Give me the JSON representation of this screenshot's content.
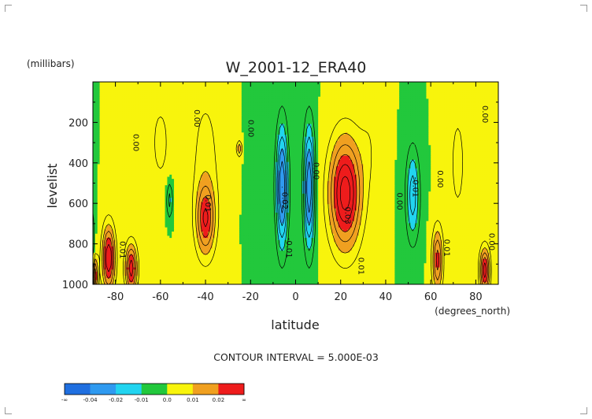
{
  "chart_data": {
    "type": "heatmap",
    "title": "W_2001-12_ERA40",
    "xlabel": "latitude",
    "ylabel": "levelist",
    "x_units": "(degrees_north)",
    "y_units": "(millibars)",
    "xlim": [
      -90,
      90
    ],
    "ylim": [
      1000,
      0
    ],
    "x_ticks": [
      -80,
      -60,
      -40,
      -20,
      0,
      20,
      40,
      60,
      80
    ],
    "y_ticks": [
      200,
      400,
      600,
      800,
      1000
    ],
    "contour_interval_label": "CONTOUR INTERVAL = 5.000E-03",
    "colorbar": {
      "labels": [
        "-∞",
        "-0.04",
        "-0.02",
        "-0.01",
        "0.0",
        "0.01",
        "0.02",
        "∞"
      ],
      "colors": [
        "#1f6fe0",
        "#2f9af0",
        "#22d4f0",
        "#22c83c",
        "#f8f40c",
        "#f0a020",
        "#ee1c1c"
      ]
    },
    "contour_labels": [
      {
        "text": "0.00",
        "x": -45,
        "y": 180
      },
      {
        "text": "0.00",
        "x": -72,
        "y": 300
      },
      {
        "text": "0.00",
        "x": -21,
        "y": 230
      },
      {
        "text": "0.01",
        "x": -40,
        "y": 600
      },
      {
        "text": "0.01",
        "x": -78,
        "y": 830
      },
      {
        "text": "-0.02",
        "x": -6,
        "y": 580
      },
      {
        "text": "-0.01",
        "x": -4,
        "y": 820
      },
      {
        "text": "0.00",
        "x": 8,
        "y": 440
      },
      {
        "text": "0.03",
        "x": 22,
        "y": 660
      },
      {
        "text": "0.01",
        "x": 28,
        "y": 910
      },
      {
        "text": "0.00",
        "x": 45,
        "y": 590
      },
      {
        "text": "-0.01",
        "x": 52,
        "y": 520
      },
      {
        "text": "0.00",
        "x": 63,
        "y": 480
      },
      {
        "text": "0.01",
        "x": 66,
        "y": 820
      },
      {
        "text": "0.00",
        "x": 83,
        "y": 160
      },
      {
        "text": "0.00",
        "x": 86,
        "y": 790
      }
    ]
  }
}
